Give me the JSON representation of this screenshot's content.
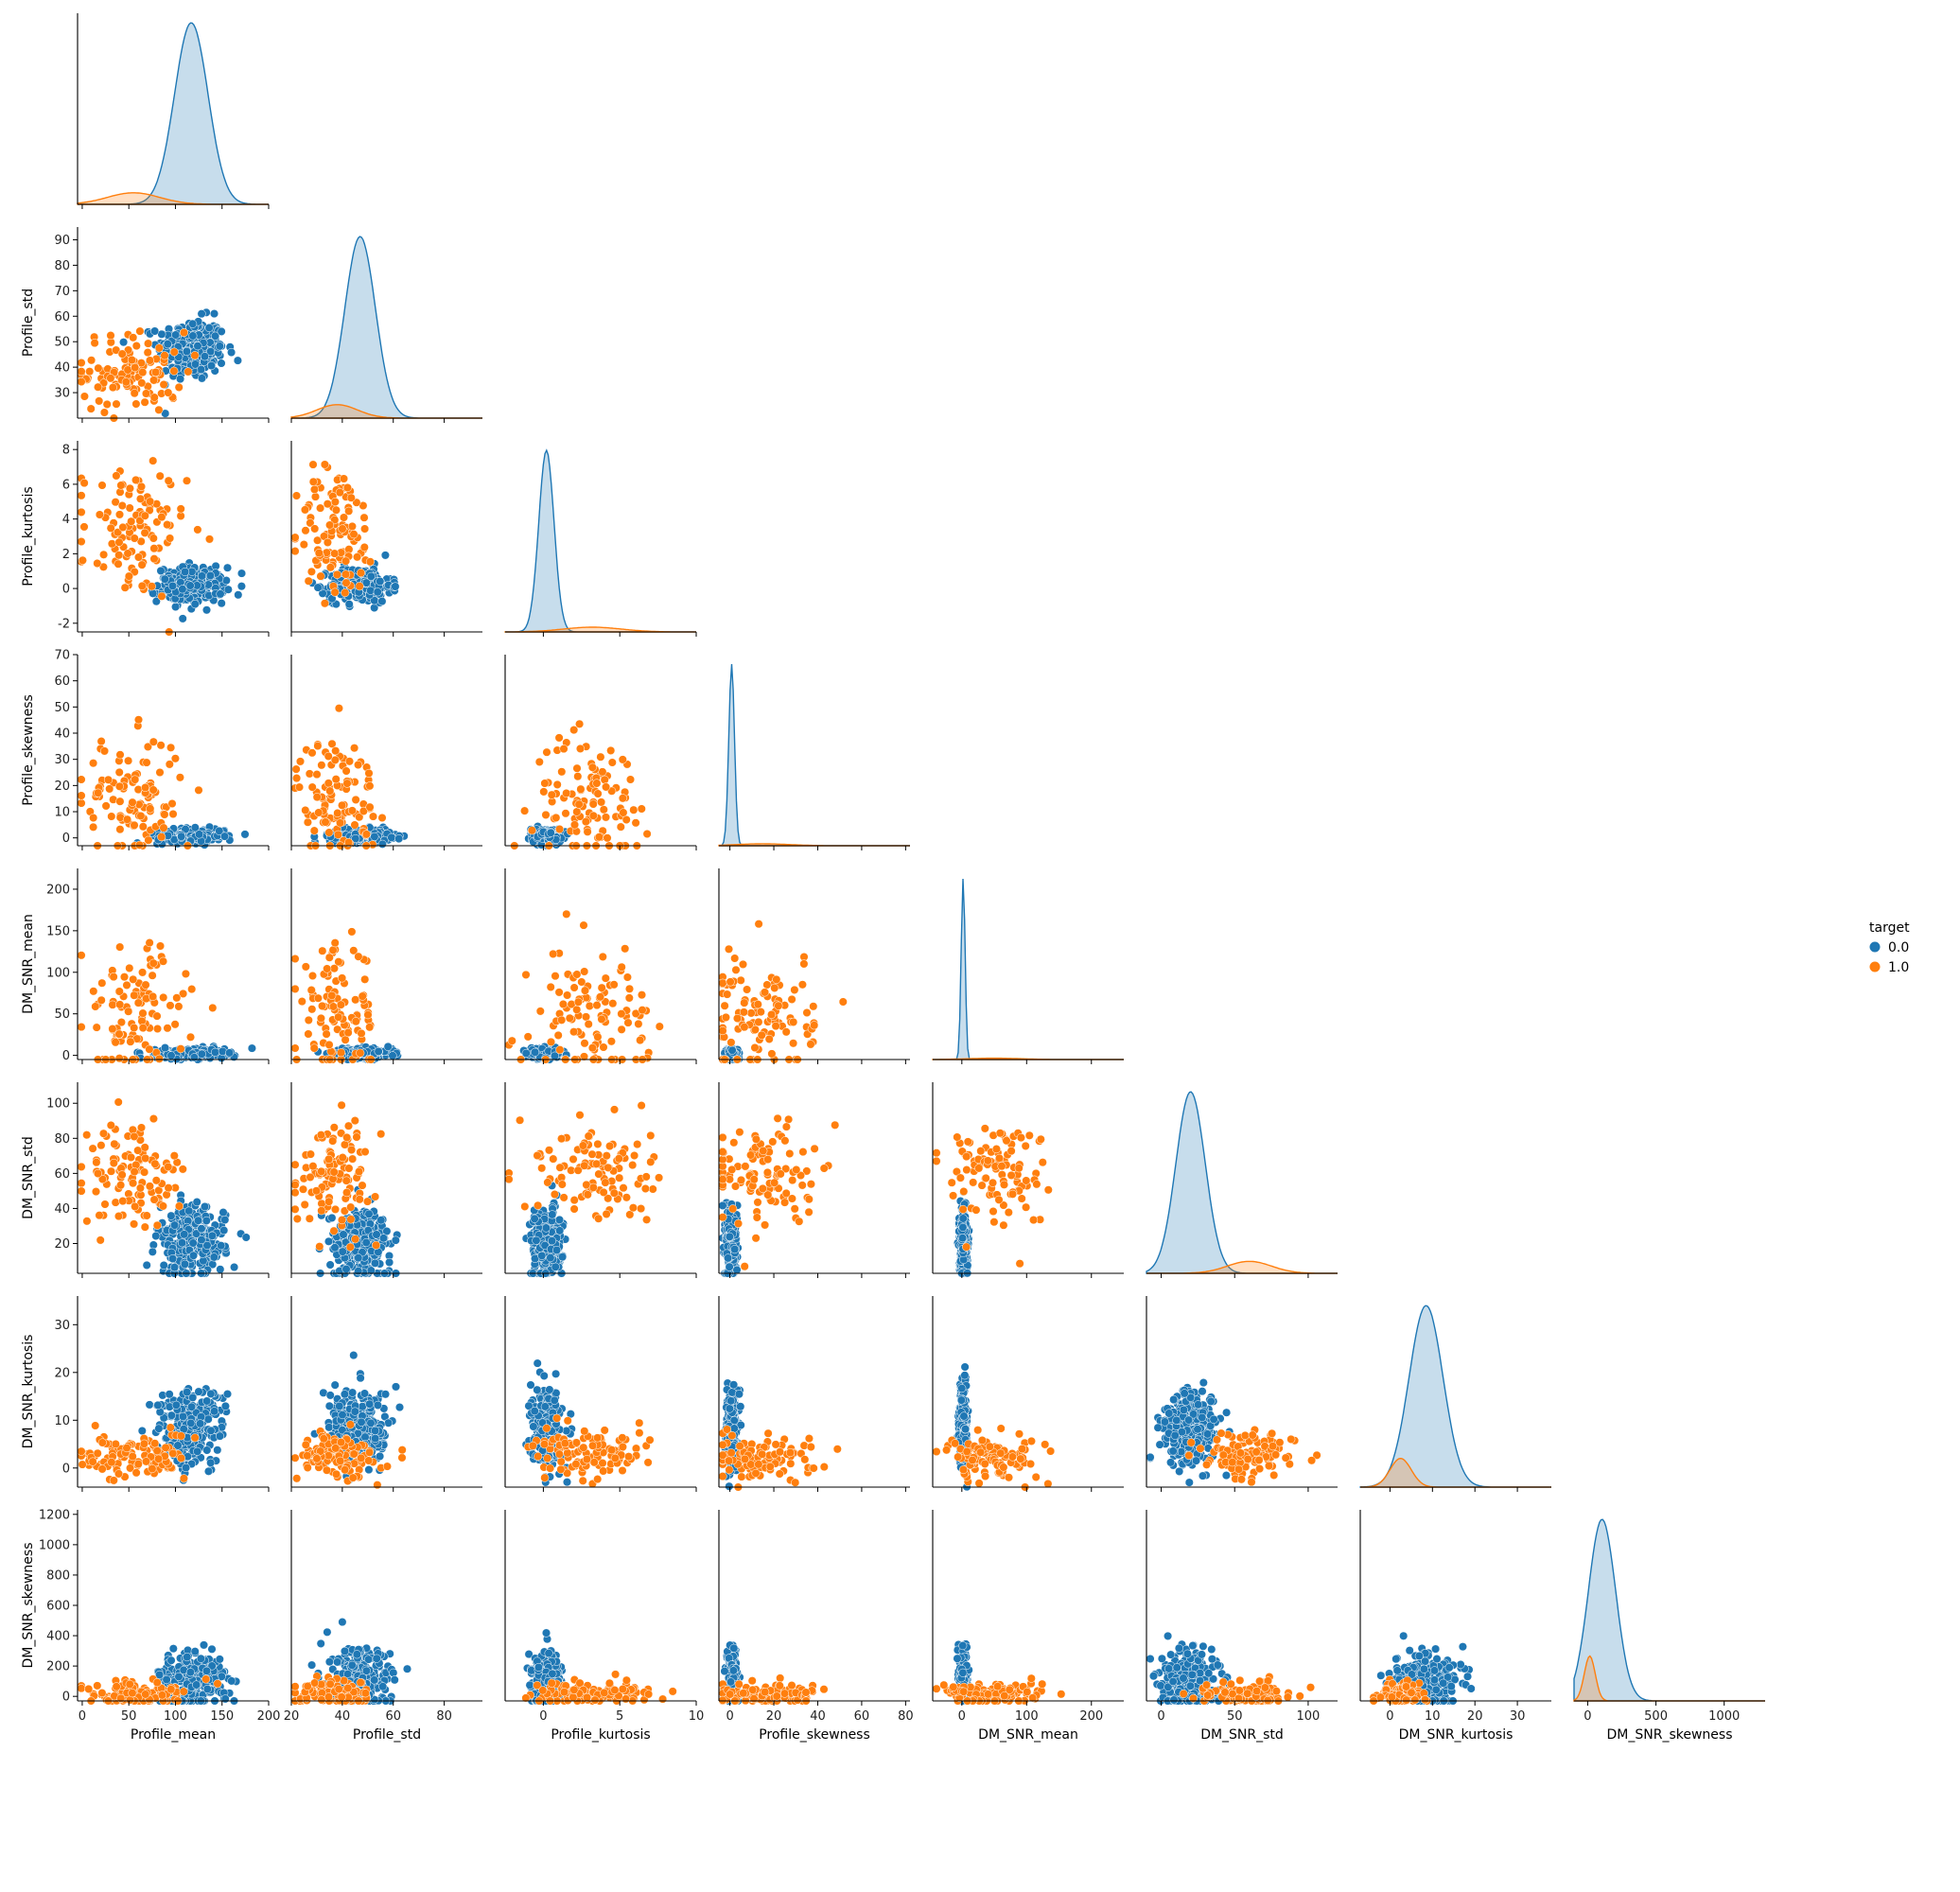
{
  "chart_data": {
    "type": "pairplot",
    "kind": "scatter",
    "diag_kind": "kde",
    "corner": true,
    "hue": "target",
    "hue_levels": [
      {
        "label": "0.0",
        "color": "#1f77b4"
      },
      {
        "label": "1.0",
        "color": "#ff7f0e"
      }
    ],
    "variables": [
      {
        "name": "Profile_mean",
        "range": [
          -5,
          200
        ],
        "ticks": [
          0,
          50,
          100,
          150,
          200
        ],
        "class0": {
          "mean": 117,
          "sd": 18
        },
        "class1": {
          "mean": 55,
          "sd": 28
        }
      },
      {
        "name": "Profile_std",
        "range": [
          20,
          95
        ],
        "ticks": [
          30,
          40,
          50,
          60,
          70,
          80,
          90
        ],
        "yticks": [
          30,
          40,
          50,
          60,
          70,
          80,
          90
        ],
        "xticks": [
          20,
          40,
          60,
          80
        ],
        "class0": {
          "mean": 47,
          "sd": 6
        },
        "class1": {
          "mean": 38,
          "sd": 8
        }
      },
      {
        "name": "Profile_kurtosis",
        "range": [
          -2.5,
          8.5
        ],
        "ticks": [
          -2,
          0,
          2,
          4,
          6,
          8
        ],
        "xticks": [
          0,
          5,
          10
        ],
        "xrange": [
          -2.5,
          10
        ],
        "class0": {
          "mean": 0.2,
          "sd": 0.5
        },
        "class1": {
          "mean": 3.2,
          "sd": 1.9
        }
      },
      {
        "name": "Profile_skewness",
        "range": [
          -3,
          70
        ],
        "ticks": [
          0,
          10,
          20,
          30,
          40,
          50,
          60,
          70
        ],
        "xticks": [
          0,
          20,
          40,
          60,
          80
        ],
        "xrange": [
          -5,
          82
        ],
        "class0": {
          "mean": 0.8,
          "sd": 1.3
        },
        "class1": {
          "mean": 15,
          "sd": 12
        }
      },
      {
        "name": "DM_SNR_mean",
        "range": [
          -5,
          225
        ],
        "ticks": [
          0,
          50,
          100,
          150,
          200
        ],
        "xticks": [
          0,
          100,
          200
        ],
        "xrange": [
          -45,
          250
        ],
        "class0": {
          "mean": 2,
          "sd": 3
        },
        "class1": {
          "mean": 50,
          "sd": 40
        }
      },
      {
        "name": "DM_SNR_std",
        "range": [
          3,
          112
        ],
        "ticks": [
          20,
          40,
          60,
          80,
          100
        ],
        "xticks": [
          0,
          50,
          100
        ],
        "xrange": [
          -10,
          120
        ],
        "class0": {
          "mean": 20,
          "sd": 10
        },
        "class1": {
          "mean": 60,
          "sd": 15
        }
      },
      {
        "name": "DM_SNR_kurtosis",
        "range": [
          -4,
          36
        ],
        "ticks": [
          0,
          10,
          20,
          30
        ],
        "xticks": [
          0,
          10,
          20,
          30
        ],
        "xrange": [
          -7,
          38
        ],
        "class0": {
          "mean": 8.5,
          "sd": 4
        },
        "class1": {
          "mean": 2.5,
          "sd": 2.5
        }
      },
      {
        "name": "DM_SNR_skewness",
        "range": [
          -30,
          1230
        ],
        "ticks": [
          0,
          200,
          400,
          600,
          800,
          1000,
          1200
        ],
        "xticks": [
          0,
          500,
          1000
        ],
        "xrange": [
          -100,
          1300
        ],
        "class0": {
          "mean": 105,
          "sd": 100
        },
        "class1": {
          "mean": 15,
          "sd": 40
        }
      }
    ]
  }
}
